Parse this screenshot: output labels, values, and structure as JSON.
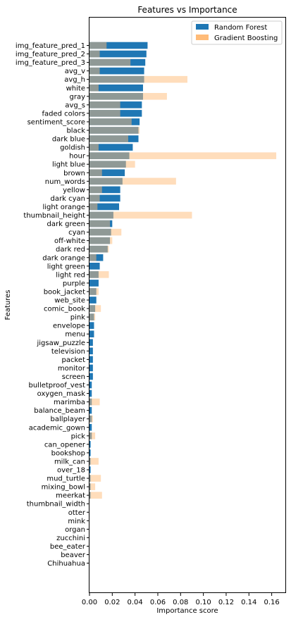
{
  "chart_data": {
    "type": "bar",
    "orientation": "horizontal",
    "title": "Features vs Importance",
    "xlabel": "Importance score",
    "ylabel": "Features",
    "xlim": [
      0,
      0.172
    ],
    "xticks": [
      "0.00",
      "0.02",
      "0.04",
      "0.06",
      "0.08",
      "0.10",
      "0.12",
      "0.14",
      "0.16"
    ],
    "xtick_values": [
      0,
      0.02,
      0.04,
      0.06,
      0.08,
      0.1,
      0.12,
      0.14,
      0.16
    ],
    "legend_position": "top-right",
    "grid": false,
    "categories": [
      "img_feature_pred_1",
      "img_feature_pred_2",
      "img_feature_pred_3",
      "avg_v",
      "avg_h",
      "white",
      "gray",
      "avg_s",
      "faded colors",
      "sentiment_score",
      "black",
      "dark blue",
      "goldish",
      "hour",
      "light blue",
      "brown",
      "num_words",
      "yellow",
      "dark cyan",
      "light orange",
      "thumbnail_height",
      "dark green",
      "cyan",
      "off-white",
      "dark red",
      "dark orange",
      "light green",
      "light red",
      "purple",
      "book_jacket",
      "web_site",
      "comic_book",
      "pink",
      "envelope",
      "menu",
      "jigsaw_puzzle",
      "television",
      "packet",
      "monitor",
      "screen",
      "bulletproof_vest",
      "oxygen_mask",
      "marimba",
      "balance_beam",
      "ballplayer",
      "academic_gown",
      "pick",
      "can_opener",
      "bookshop",
      "milk_can",
      "over_18",
      "mud_turtle",
      "mixing_bowl",
      "meerkat",
      "thumbnail_width",
      "otter",
      "mink",
      "organ",
      "zucchini",
      "bee_eater",
      "beaver",
      "Chihuahua"
    ],
    "series": [
      {
        "name": "Random Forest",
        "color": "#1f77b4",
        "values": [
          0.051,
          0.05,
          0.049,
          0.048,
          0.048,
          0.047,
          0.047,
          0.046,
          0.046,
          0.044,
          0.043,
          0.043,
          0.038,
          0.035,
          0.032,
          0.031,
          0.029,
          0.027,
          0.027,
          0.026,
          0.021,
          0.02,
          0.019,
          0.018,
          0.016,
          0.012,
          0.009,
          0.008,
          0.008,
          0.006,
          0.006,
          0.005,
          0.004,
          0.004,
          0.004,
          0.003,
          0.003,
          0.003,
          0.003,
          0.003,
          0.002,
          0.002,
          0.002,
          0.002,
          0.002,
          0.002,
          0.002,
          0.001,
          0.001,
          0.001,
          0.001,
          0.001,
          0.001,
          0.001,
          0,
          0,
          0,
          0,
          0,
          0,
          0,
          0
        ]
      },
      {
        "name": "Gradient Boosting",
        "color": "#ffbb78",
        "values": [
          0.015,
          0.009,
          0.036,
          0.009,
          0.086,
          0.008,
          0.068,
          0.027,
          0.027,
          0.037,
          0.044,
          0.034,
          0.008,
          0.164,
          0.04,
          0.011,
          0.076,
          0.011,
          0.009,
          0.007,
          0.09,
          0.018,
          0.028,
          0.02,
          0.017,
          0.006,
          0,
          0.017,
          0,
          0.008,
          0,
          0.01,
          0.005,
          0,
          0,
          0,
          0,
          0,
          0,
          0,
          0,
          0,
          0.009,
          0,
          0.003,
          0,
          0.005,
          0,
          0,
          0.008,
          0,
          0.01,
          0.005,
          0.011,
          0,
          0,
          0,
          0,
          0,
          0,
          0,
          0
        ]
      }
    ]
  }
}
